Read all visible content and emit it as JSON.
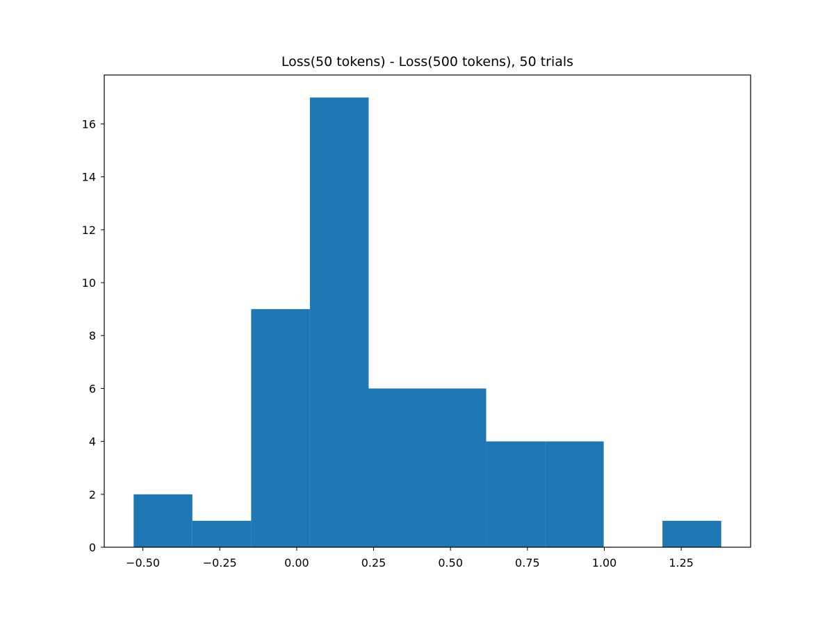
{
  "chart_data": {
    "type": "bar",
    "subtype": "histogram",
    "title": "Loss(50 tokens) - Loss(500 tokens), 50 trials",
    "xlabel": "",
    "ylabel": "",
    "bin_edges": [
      -0.53,
      -0.339,
      -0.148,
      0.043,
      0.234,
      0.425,
      0.616,
      0.807,
      0.998,
      1.189,
      1.38
    ],
    "values": [
      2,
      1,
      9,
      17,
      6,
      6,
      4,
      4,
      0,
      1
    ],
    "xlim": [
      -0.6255,
      1.4755
    ],
    "ylim": [
      0,
      17.85
    ],
    "xticks": [
      -0.5,
      -0.25,
      0.0,
      0.25,
      0.5,
      0.75,
      1.0,
      1.25
    ],
    "xtick_labels": [
      "−0.50",
      "−0.25",
      "0.00",
      "0.25",
      "0.50",
      "0.75",
      "1.00",
      "1.25"
    ],
    "yticks": [
      0,
      2,
      4,
      6,
      8,
      10,
      12,
      14,
      16
    ],
    "ytick_labels": [
      "0",
      "2",
      "4",
      "6",
      "8",
      "10",
      "12",
      "14",
      "16"
    ],
    "bar_color": "#1f77b4",
    "grid": false,
    "legend": "none"
  }
}
